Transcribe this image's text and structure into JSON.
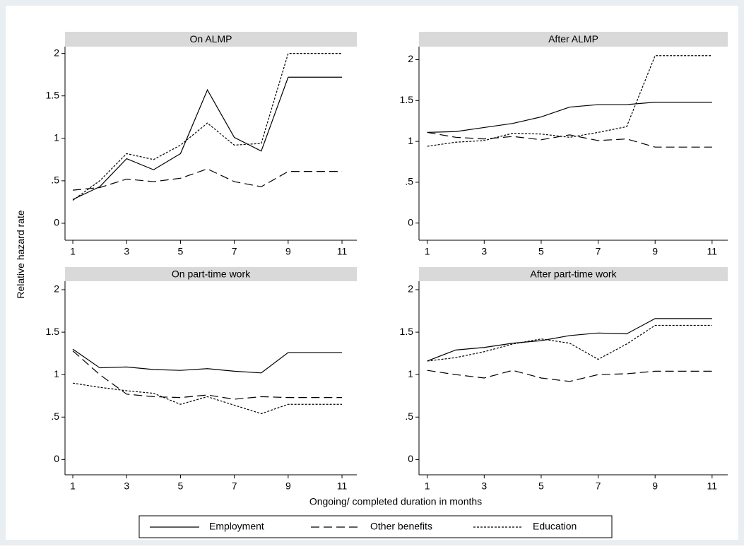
{
  "ylabel": "Relative hazard rate",
  "xlabel": "Ongoing/ completed duration in months",
  "chart_data": [
    {
      "type": "line",
      "title": "On ALMP",
      "x": [
        1,
        2,
        3,
        4,
        5,
        6,
        7,
        8,
        9,
        10,
        11
      ],
      "xlim": [
        0.71,
        11.55
      ],
      "xticks": [
        1,
        3,
        5,
        7,
        9,
        11
      ],
      "ylim": [
        -0.2,
        2.08
      ],
      "yticks": [
        0,
        {
          "value": 0.5,
          "label": ".5"
        },
        1,
        1.5,
        2
      ],
      "series": [
        {
          "name": "Employment",
          "color": "#000000",
          "dash": "solid",
          "values": [
            0.28,
            0.43,
            0.76,
            0.63,
            0.82,
            1.57,
            1.01,
            0.85,
            1.72,
            1.72,
            1.72
          ]
        },
        {
          "name": "Other benefits",
          "color": "#000000",
          "dash": "dashed",
          "values": [
            0.39,
            0.42,
            0.52,
            0.49,
            0.53,
            0.64,
            0.49,
            0.43,
            0.61,
            0.61,
            0.61
          ]
        },
        {
          "name": "Education",
          "color": "#000000",
          "dash": "dotted",
          "values": [
            0.27,
            0.5,
            0.82,
            0.75,
            0.92,
            1.18,
            0.92,
            0.94,
            2.0,
            2.0,
            2.0
          ]
        }
      ]
    },
    {
      "type": "line",
      "title": "After ALMP",
      "x": [
        1,
        2,
        3,
        4,
        5,
        6,
        7,
        8,
        9,
        10,
        11
      ],
      "xlim": [
        0.71,
        11.55
      ],
      "xticks": [
        1,
        3,
        5,
        7,
        9,
        11
      ],
      "ylim": [
        -0.21,
        2.16
      ],
      "yticks": [
        0,
        {
          "value": 0.5,
          "label": ".5"
        },
        1,
        1.5,
        2
      ],
      "series": [
        {
          "name": "Employment",
          "color": "#000000",
          "dash": "solid",
          "values": [
            1.11,
            1.12,
            1.17,
            1.22,
            1.3,
            1.42,
            1.45,
            1.45,
            1.48,
            1.48,
            1.48
          ]
        },
        {
          "name": "Other benefits",
          "color": "#000000",
          "dash": "dashed",
          "values": [
            1.11,
            1.05,
            1.03,
            1.06,
            1.02,
            1.08,
            1.01,
            1.03,
            0.93,
            0.93,
            0.93
          ]
        },
        {
          "name": "Education",
          "color": "#000000",
          "dash": "dotted",
          "values": [
            0.94,
            0.99,
            1.01,
            1.1,
            1.09,
            1.05,
            1.11,
            1.18,
            2.05,
            2.05,
            2.05
          ]
        }
      ]
    },
    {
      "type": "line",
      "title": "On part-time work",
      "x": [
        1,
        2,
        3,
        4,
        5,
        6,
        7,
        8,
        9,
        10,
        11
      ],
      "xlim": [
        0.71,
        11.55
      ],
      "xticks": [
        1,
        3,
        5,
        7,
        9,
        11
      ],
      "ylim": [
        -0.18,
        2.1
      ],
      "yticks": [
        0,
        {
          "value": 0.5,
          "label": ".5"
        },
        1,
        1.5,
        2
      ],
      "series": [
        {
          "name": "Employment",
          "color": "#000000",
          "dash": "solid",
          "values": [
            1.3,
            1.08,
            1.09,
            1.06,
            1.05,
            1.07,
            1.04,
            1.02,
            1.26,
            1.26,
            1.26
          ]
        },
        {
          "name": "Other benefits",
          "color": "#000000",
          "dash": "dashed",
          "values": [
            1.28,
            1.0,
            0.77,
            0.74,
            0.73,
            0.76,
            0.71,
            0.74,
            0.73,
            0.73,
            0.73
          ]
        },
        {
          "name": "Education",
          "color": "#000000",
          "dash": "dotted",
          "values": [
            0.9,
            0.85,
            0.81,
            0.78,
            0.65,
            0.74,
            0.64,
            0.54,
            0.65,
            0.65,
            0.65
          ]
        }
      ]
    },
    {
      "type": "line",
      "title": "After part-time work",
      "x": [
        1,
        2,
        3,
        4,
        5,
        6,
        7,
        8,
        9,
        10,
        11
      ],
      "xlim": [
        0.71,
        11.55
      ],
      "xticks": [
        1,
        3,
        5,
        7,
        9,
        11
      ],
      "ylim": [
        -0.18,
        2.1
      ],
      "yticks": [
        0,
        {
          "value": 0.5,
          "label": ".5"
        },
        1,
        1.5,
        2
      ],
      "series": [
        {
          "name": "Employment",
          "color": "#000000",
          "dash": "solid",
          "values": [
            1.16,
            1.29,
            1.32,
            1.37,
            1.4,
            1.46,
            1.49,
            1.48,
            1.66,
            1.66,
            1.66
          ]
        },
        {
          "name": "Other benefits",
          "color": "#000000",
          "dash": "dashed",
          "values": [
            1.05,
            1.0,
            0.96,
            1.05,
            0.96,
            0.92,
            1.0,
            1.01,
            1.04,
            1.04,
            1.04
          ]
        },
        {
          "name": "Education",
          "color": "#000000",
          "dash": "dotted",
          "values": [
            1.16,
            1.2,
            1.27,
            1.36,
            1.42,
            1.37,
            1.18,
            1.36,
            1.58,
            1.58,
            1.58
          ]
        }
      ]
    }
  ]
}
